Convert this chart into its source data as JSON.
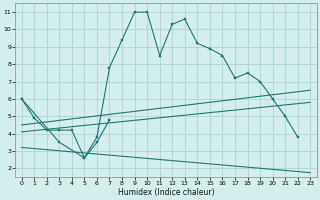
{
  "xlabel": "Humidex (Indice chaleur)",
  "background_color": "#d4eeee",
  "grid_color": "#aed4d4",
  "line_color": "#1a7a6e",
  "xlim": [
    -0.5,
    23.5
  ],
  "ylim": [
    1.5,
    11.5
  ],
  "xticks": [
    0,
    1,
    2,
    3,
    4,
    5,
    6,
    7,
    8,
    9,
    10,
    11,
    12,
    13,
    14,
    15,
    16,
    17,
    18,
    19,
    20,
    21,
    22,
    23
  ],
  "yticks": [
    2,
    3,
    4,
    5,
    6,
    7,
    8,
    9,
    10,
    11
  ],
  "line1_x": [
    0,
    1,
    2,
    3,
    4,
    5,
    6,
    7,
    8,
    9,
    10,
    11,
    12,
    13,
    14,
    15,
    16,
    17,
    18,
    19,
    20,
    21,
    22,
    23
  ],
  "line1_y": [
    6.0,
    4.9,
    4.2,
    4.2,
    4.2,
    2.6,
    3.8,
    7.8,
    9.4,
    11.0,
    11.0,
    8.5,
    10.3,
    10.6,
    9.2,
    8.9,
    8.5,
    7.2,
    7.5,
    7.0,
    6.0,
    5.0,
    3.8,
    null
  ],
  "line2_x": [
    0,
    3,
    5,
    6,
    7
  ],
  "line2_y": [
    6.0,
    3.5,
    2.6,
    3.5,
    4.8
  ],
  "line3_x": [
    0,
    23
  ],
  "line3_y": [
    4.5,
    6.5
  ],
  "line4_x": [
    0,
    23
  ],
  "line4_y": [
    4.1,
    5.8
  ],
  "line5_x": [
    0,
    23
  ],
  "line5_y": [
    3.2,
    1.75
  ]
}
